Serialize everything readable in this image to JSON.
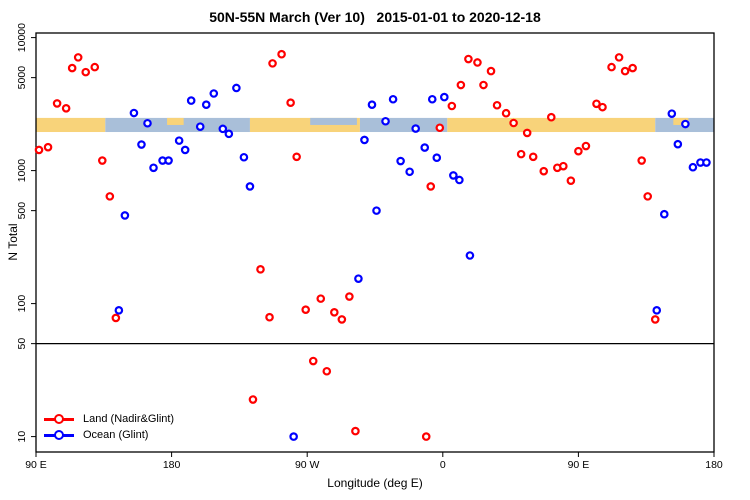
{
  "title": "50N-55N March (Ver 10)   2015-01-01 to 2020-12-18",
  "chart_data": {
    "type": "scatter",
    "title": "50N-55N March (Ver 10)   2015-01-01 to 2020-12-18",
    "xlabel": "Longitude (deg E)",
    "ylabel": "N Total",
    "x_axis": {
      "min_deg_e": -270,
      "max_deg_e": 180,
      "ticks": [
        {
          "deg": -270,
          "label": "90 E"
        },
        {
          "deg": -180,
          "label": "180"
        },
        {
          "deg": -90,
          "label": "90 W"
        },
        {
          "deg": 0,
          "label": "0"
        },
        {
          "deg": 90,
          "label": "90 E"
        },
        {
          "deg": 180,
          "label": "180"
        }
      ]
    },
    "y_axis": {
      "scale": "log10",
      "min": 8,
      "max": 11000,
      "tick_values": [
        10000,
        5000,
        1000,
        500,
        100,
        50,
        10
      ],
      "tick_labels": [
        "10000",
        "5000",
        "1000",
        "500",
        "100",
        "50",
        "10"
      ]
    },
    "reference_line": {
      "y_value": 50,
      "color": "#000000"
    },
    "map_strip": {
      "description": "land-ocean surface mask band along longitude",
      "value_top": 2490,
      "value_bottom": 1950,
      "land_color": "#f8d37a",
      "ocean_color": "#a9bfd9",
      "segments": [
        {
          "surface": "land",
          "from_deg": -270,
          "to_deg": -224
        },
        {
          "surface": "ocean",
          "from_deg": -224,
          "to_deg": -128
        },
        {
          "surface": "land",
          "from_deg": -128,
          "to_deg": -55
        },
        {
          "surface": "ocean",
          "from_deg": -55,
          "to_deg": 3
        },
        {
          "surface": "land",
          "from_deg": 3,
          "to_deg": 141
        },
        {
          "surface": "ocean",
          "from_deg": 141,
          "to_deg": 180
        }
      ],
      "patches": [
        {
          "surface": "land",
          "from_deg": -183,
          "to_deg": -172,
          "position": "top-half"
        },
        {
          "surface": "ocean",
          "from_deg": -88,
          "to_deg": -57,
          "position": "top-half"
        },
        {
          "surface": "land",
          "from_deg": 153,
          "to_deg": 163,
          "position": "top-half"
        }
      ]
    },
    "legend": {
      "position": "bottom-left",
      "items": [
        {
          "label": "Land (Nadir&Glint)",
          "color": "#ff0000"
        },
        {
          "label": "Ocean (Glint)",
          "color": "#0000ff"
        }
      ]
    },
    "series": [
      {
        "name": "Land (Nadir&Glint)",
        "color": "#ff0000",
        "marker": "open-circle",
        "points": [
          [
            -242,
            7100
          ],
          [
            -246,
            5900
          ],
          [
            -237,
            5500
          ],
          [
            -231,
            6000
          ],
          [
            -256,
            3200
          ],
          [
            -250,
            2940
          ],
          [
            -268,
            1430
          ],
          [
            -262,
            1500
          ],
          [
            -226,
            1190
          ],
          [
            -221,
            640
          ],
          [
            -217,
            78
          ],
          [
            -121,
            181
          ],
          [
            -126,
            19
          ],
          [
            -115,
            79
          ],
          [
            -107,
            7500
          ],
          [
            -113,
            6400
          ],
          [
            -101,
            3240
          ],
          [
            -97,
            1270
          ],
          [
            -91,
            90
          ],
          [
            -86,
            37
          ],
          [
            -81,
            109
          ],
          [
            -77,
            31
          ],
          [
            -72,
            86
          ],
          [
            -67,
            76
          ],
          [
            -62,
            113
          ],
          [
            -58,
            11
          ],
          [
            -11,
            10
          ],
          [
            -8,
            760
          ],
          [
            -2,
            2100
          ],
          [
            6,
            3060
          ],
          [
            12,
            4400
          ],
          [
            17,
            6900
          ],
          [
            23,
            6500
          ],
          [
            27,
            4400
          ],
          [
            32,
            5600
          ],
          [
            36,
            3100
          ],
          [
            42,
            2700
          ],
          [
            47,
            2280
          ],
          [
            52,
            1330
          ],
          [
            56,
            1920
          ],
          [
            60,
            1270
          ],
          [
            67,
            990
          ],
          [
            72,
            2520
          ],
          [
            76,
            1050
          ],
          [
            80,
            1080
          ],
          [
            85,
            840
          ],
          [
            90,
            1400
          ],
          [
            95,
            1530
          ],
          [
            102,
            3180
          ],
          [
            106,
            3000
          ],
          [
            112,
            6000
          ],
          [
            117,
            7100
          ],
          [
            121,
            5600
          ],
          [
            126,
            5900
          ],
          [
            132,
            1190
          ],
          [
            136,
            640
          ],
          [
            141,
            76
          ]
        ]
      },
      {
        "name": "Ocean (Glint)",
        "color": "#0000ff",
        "marker": "open-circle",
        "points": [
          [
            -215,
            89
          ],
          [
            -211,
            460
          ],
          [
            -205,
            2710
          ],
          [
            -200,
            1570
          ],
          [
            -196,
            2270
          ],
          [
            -192,
            1050
          ],
          [
            -186,
            1190
          ],
          [
            -182,
            1190
          ],
          [
            -175,
            1680
          ],
          [
            -171,
            1430
          ],
          [
            -167,
            3360
          ],
          [
            -161,
            2140
          ],
          [
            -157,
            3130
          ],
          [
            -152,
            3800
          ],
          [
            -146,
            2060
          ],
          [
            -142,
            1890
          ],
          [
            -137,
            4180
          ],
          [
            -132,
            1260
          ],
          [
            -128,
            760
          ],
          [
            -99,
            10
          ],
          [
            -56,
            154
          ],
          [
            -52,
            1700
          ],
          [
            -47,
            3130
          ],
          [
            -44,
            500
          ],
          [
            -38,
            2350
          ],
          [
            -33,
            3440
          ],
          [
            -28,
            1180
          ],
          [
            -22,
            980
          ],
          [
            -18,
            2070
          ],
          [
            -12,
            1490
          ],
          [
            -7,
            3440
          ],
          [
            -4,
            1250
          ],
          [
            1,
            3570
          ],
          [
            7,
            920
          ],
          [
            11,
            850
          ],
          [
            18,
            230
          ],
          [
            142,
            89
          ],
          [
            147,
            470
          ],
          [
            152,
            2680
          ],
          [
            156,
            1580
          ],
          [
            161,
            2240
          ],
          [
            166,
            1060
          ],
          [
            171,
            1150
          ],
          [
            175,
            1150
          ]
        ]
      }
    ]
  }
}
